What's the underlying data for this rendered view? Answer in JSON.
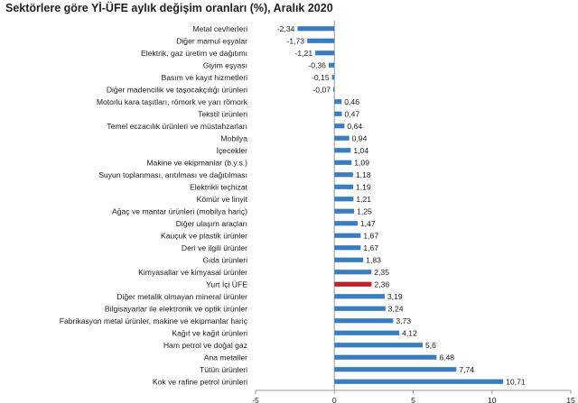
{
  "chart_data": {
    "type": "bar",
    "orientation": "horizontal",
    "title": "Sektörlere göre Yİ-ÜFE aylık değişim oranları (%), Aralık 2020",
    "xlim": [
      -5,
      15
    ],
    "xticks": [
      "-5",
      "0",
      "5",
      "10",
      "15"
    ],
    "colors": {
      "default": "#3a7dbf",
      "highlight": "#c0222a"
    },
    "categories": [
      "Metal cevherleri",
      "Diğer mamul eşyalar",
      "Elektrik, gaz üretim ve dağıtımı",
      "Giyim eşyası",
      "Basım ve kayıt hizmetleri",
      "Diğer madencilik ve taşocakçılığı ürünleri",
      "Motorlu kara taşıtları, römork ve yarı römork",
      "Tekstil ürünleri",
      "Temel eczacılık ürünleri ve müstahzarları",
      "Mobilya",
      "İçecekler",
      "Makine ve ekipmanlar (b.y.s.)",
      "Suyun toplanması, arıtılması ve dağıtılması",
      "Elektrikli teçhizat",
      "Kömür ve linyit",
      "Ağaç ve mantar ürünleri (mobilya hariç)",
      "Diğer ulaşım araçları",
      "Kauçuk ve plastik ürünler",
      "Deri ve ilgili ürünler",
      "Gıda ürünleri",
      "Kimyasallar ve kimyasal ürünler",
      "Yurt İçi ÜFE",
      "Diğer metalik olmayan mineral ürünler",
      "Bilgisayarlar ile elektronik ve optik ürünler",
      "Fabrikasyon metal ürünler, makine ve ekipmanlar hariç",
      "Kağıt ve kağıt ürünleri",
      "Ham petrol ve doğal gaz",
      "Ana metaller",
      "Tütün ürünleri",
      "Kok ve rafine petrol ürünleri"
    ],
    "values": [
      -2.34,
      -1.73,
      -1.21,
      -0.36,
      -0.15,
      -0.07,
      0.46,
      0.47,
      0.64,
      0.94,
      1.04,
      1.09,
      1.18,
      1.19,
      1.21,
      1.25,
      1.47,
      1.67,
      1.67,
      1.83,
      2.35,
      2.36,
      3.19,
      3.24,
      3.73,
      4.12,
      5.6,
      6.48,
      7.74,
      10.71
    ],
    "value_labels": [
      "-2,34",
      "-1,73",
      "-1,21",
      "-0,36",
      "-0,15",
      "-0,07",
      "0,46",
      "0,47",
      "0,64",
      "0,94",
      "1,04",
      "1,09",
      "1,18",
      "1,19",
      "1,21",
      "1,25",
      "1,47",
      "1,67",
      "1,67",
      "1,83",
      "2,35",
      "2,36",
      "3,19",
      "3,24",
      "3,73",
      "4,12",
      "5,6",
      "6,48",
      "7,74",
      "10,71"
    ],
    "highlight_index": 21
  }
}
